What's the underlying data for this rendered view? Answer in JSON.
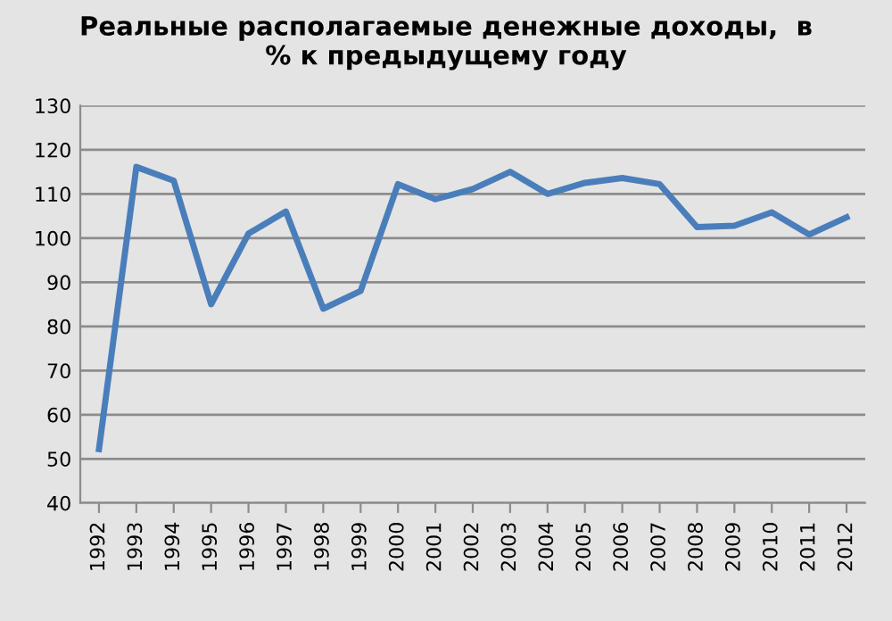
{
  "chart_data": {
    "type": "line",
    "title": "Реальные располагаемые денежные доходы,  в\n% к предыдущему году",
    "categories": [
      "1992",
      "1993",
      "1994",
      "1995",
      "1996",
      "1997",
      "1998",
      "1999",
      "2000",
      "2001",
      "2002",
      "2003",
      "2004",
      "2005",
      "2006",
      "2007",
      "2008",
      "2009",
      "2010",
      "2011",
      "2012"
    ],
    "series": [
      {
        "color": "#4a7ebb",
        "values": [
          52.2,
          116.1,
          113,
          85,
          101,
          106,
          84,
          88,
          112.2,
          108.8,
          111.1,
          115,
          110,
          112.5,
          113.6,
          112.2,
          102.5,
          102.8,
          105.8,
          100.8,
          104.7
        ]
      }
    ],
    "ylim": [
      40,
      130
    ],
    "yticks": [
      40,
      50,
      60,
      70,
      80,
      90,
      100,
      110,
      120,
      130
    ],
    "grid": "y",
    "marker": "none",
    "line_style": "solid"
  }
}
